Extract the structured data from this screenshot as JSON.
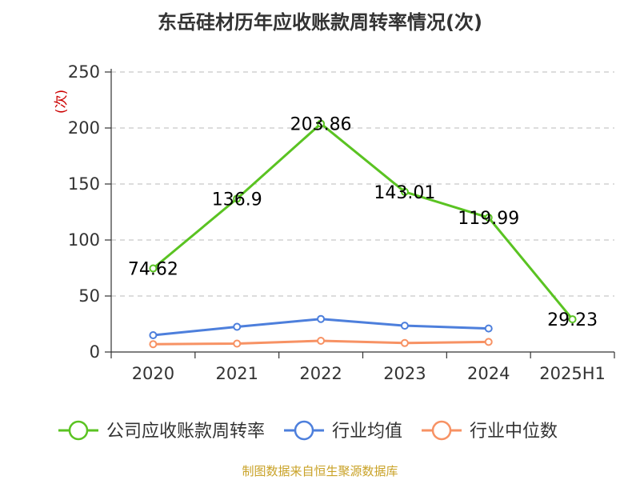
{
  "chart_data": {
    "type": "line",
    "title": "东岳硅材历年应收账款周转率情况(次)",
    "ylabel": "(次)",
    "categories": [
      "2020",
      "2021",
      "2022",
      "2023",
      "2024",
      "2025H1"
    ],
    "ylim": [
      0,
      250
    ],
    "yticks": [
      0,
      50,
      100,
      150,
      200,
      250
    ],
    "grid": true,
    "legend_position": "bottom",
    "series": [
      {
        "name": "公司应收账款周转率",
        "color": "#5ac322",
        "values": [
          74.62,
          136.9,
          203.86,
          143.01,
          119.99,
          29.23
        ],
        "labels": [
          "74.62",
          "136.9",
          "203.86",
          "143.01",
          "119.99",
          "29.23"
        ]
      },
      {
        "name": "行业均值",
        "color": "#4d7fdc",
        "values": [
          15,
          22.5,
          29.5,
          23.5,
          21,
          null
        ]
      },
      {
        "name": "行业中位数",
        "color": "#f79264",
        "values": [
          7,
          7.5,
          10,
          8,
          9,
          null
        ]
      }
    ]
  },
  "source": "制图数据来自恒生聚源数据库"
}
